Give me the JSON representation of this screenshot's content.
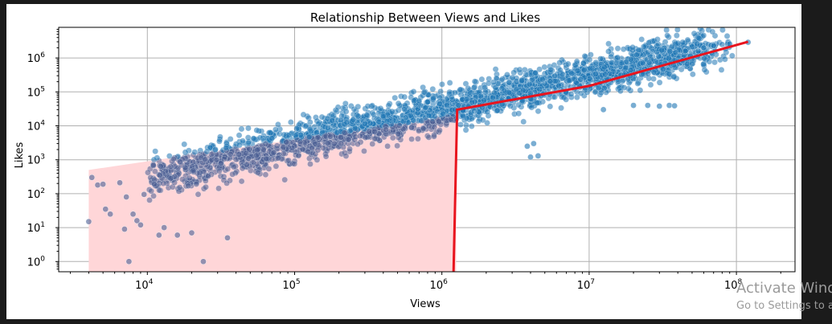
{
  "chart_data": {
    "type": "scatter",
    "title": "Relationship Between Views and Likes",
    "xlabel": "Views",
    "ylabel": "Likes",
    "xscale": "log",
    "yscale": "log",
    "xlim": [
      2500,
      250000000
    ],
    "ylim": [
      0.5,
      8000000
    ],
    "grid": true,
    "x_tick_labels": [
      {
        "value": 10000,
        "base": "10",
        "exp": "4"
      },
      {
        "value": 100000,
        "base": "10",
        "exp": "5"
      },
      {
        "value": 1000000,
        "base": "10",
        "exp": "6"
      },
      {
        "value": 10000000,
        "base": "10",
        "exp": "7"
      },
      {
        "value": 100000000,
        "base": "10",
        "exp": "8"
      }
    ],
    "y_tick_labels": [
      {
        "value": 1,
        "base": "10",
        "exp": "0"
      },
      {
        "value": 10,
        "base": "10",
        "exp": "1"
      },
      {
        "value": 100,
        "base": "10",
        "exp": "2"
      },
      {
        "value": 1000,
        "base": "10",
        "exp": "3"
      },
      {
        "value": 10000,
        "base": "10",
        "exp": "4"
      },
      {
        "value": 100000,
        "base": "10",
        "exp": "5"
      },
      {
        "value": 1000000,
        "base": "10",
        "exp": "6"
      }
    ],
    "colors": {
      "points_main": "#1f77b4",
      "points_low_region": "#4a5f94",
      "fit_line": "#e8141e",
      "shaded_region": "#ffd6d8",
      "grid": "#b0b0b0"
    },
    "shaded_region": {
      "x": [
        4000,
        1250000
      ],
      "y_upper": [
        500,
        20000
      ],
      "y_lower": 0.5
    },
    "fit_line": {
      "points": [
        [
          1200000,
          0.5
        ],
        [
          1270000,
          30000
        ],
        [
          10000000,
          150000
        ],
        [
          120000000,
          3000000
        ]
      ]
    },
    "outliers": [
      [
        4000,
        15
      ],
      [
        4200,
        300
      ],
      [
        4600,
        180
      ],
      [
        5000,
        190
      ],
      [
        5200,
        35
      ],
      [
        5600,
        25
      ],
      [
        6500,
        210
      ],
      [
        7000,
        9
      ],
      [
        7200,
        80
      ],
      [
        7500,
        1
      ],
      [
        8500,
        16
      ],
      [
        9000,
        12
      ],
      [
        8000,
        25
      ],
      [
        9500,
        95
      ],
      [
        24000,
        1
      ],
      [
        35000,
        5
      ],
      [
        12000,
        6
      ],
      [
        13000,
        10
      ],
      [
        16000,
        6
      ],
      [
        20000,
        7
      ],
      [
        55000000,
        1600000
      ],
      [
        60000000,
        2000000
      ],
      [
        70000000,
        2300000
      ],
      [
        80000000,
        2500000
      ],
      [
        90000000,
        2600000
      ],
      [
        120000000,
        2900000
      ],
      [
        45000000,
        1600000
      ],
      [
        12500000,
        30000
      ],
      [
        20000000,
        40000
      ],
      [
        25000000,
        40000
      ],
      [
        30000000,
        38000
      ],
      [
        35000000,
        40000
      ],
      [
        38000000,
        39000
      ],
      [
        4000000,
        1200
      ],
      [
        4500000,
        1300
      ],
      [
        3800000,
        2500
      ],
      [
        4200000,
        3000
      ]
    ],
    "series": [
      {
        "name": "",
        "description_model": {
          "x_range": [
            10000,
            100000000
          ],
          "log_likes_per_log_views_slope": 1.0,
          "median_like_rate": 0.03
        }
      }
    ]
  },
  "watermark": {
    "title": "Activate Wind",
    "subtitle": "Go to Settings to a"
  }
}
